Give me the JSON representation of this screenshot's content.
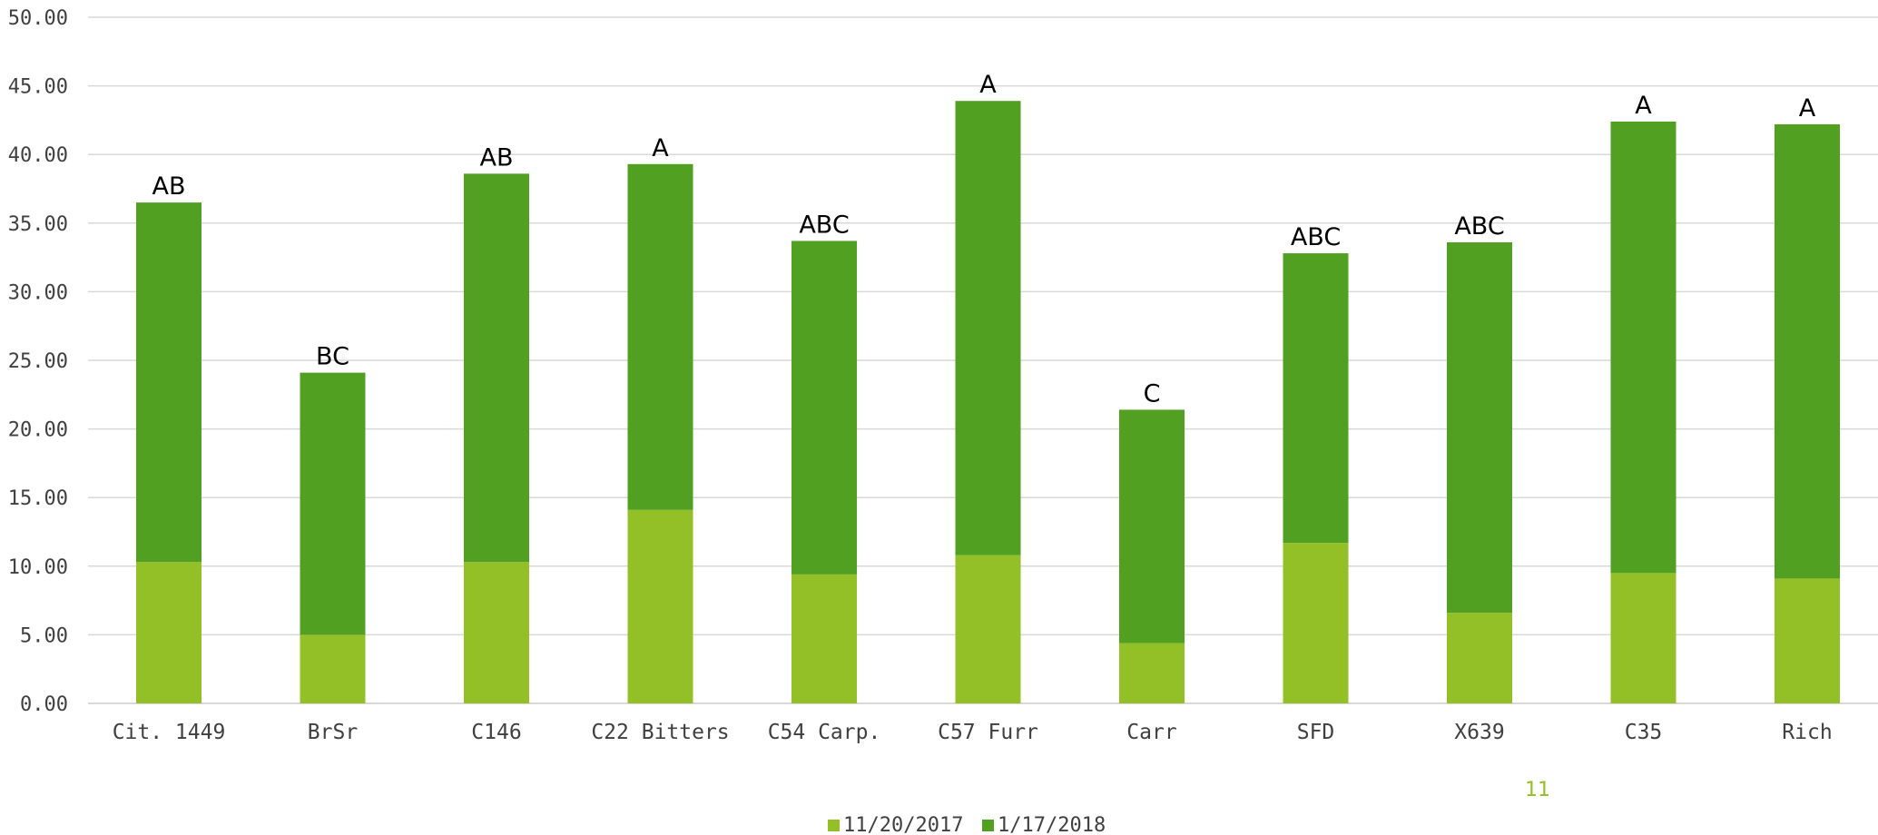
{
  "chart_data": {
    "type": "bar",
    "stacked": true,
    "categories": [
      "Cit. 1449",
      "BrSr",
      "C146",
      "C22 Bitters",
      "C54 Carp.",
      "C57 Furr",
      "Carr",
      "SFD",
      "X639",
      "C35",
      "Rich"
    ],
    "series": [
      {
        "name": "11/20/2017",
        "color": "#92C026",
        "values": [
          10.3,
          5.0,
          10.3,
          14.1,
          9.4,
          10.8,
          4.4,
          11.7,
          6.6,
          9.5,
          9.1
        ]
      },
      {
        "name": "1/17/2018",
        "color": "#52A022",
        "values": [
          26.2,
          19.1,
          28.3,
          25.2,
          24.3,
          33.1,
          17.0,
          21.1,
          27.0,
          32.9,
          33.1
        ]
      }
    ],
    "significance_letters": [
      "AB",
      "BC",
      "AB",
      "A",
      "ABC",
      "A",
      "C",
      "ABC",
      "ABC",
      "A",
      "A"
    ],
    "ylim": [
      0,
      50
    ],
    "yticks": [
      "0.00",
      "5.00",
      "10.00",
      "15.00",
      "20.00",
      "25.00",
      "30.00",
      "35.00",
      "40.00",
      "45.00",
      "50.00"
    ],
    "grid": true,
    "legend_position": "bottom-center",
    "title": "",
    "xlabel": "",
    "ylabel": ""
  },
  "page_number": "11",
  "colors": {
    "gridline": "#D9D9D9",
    "axis_text": "#404040",
    "page_number": "#92C026"
  }
}
